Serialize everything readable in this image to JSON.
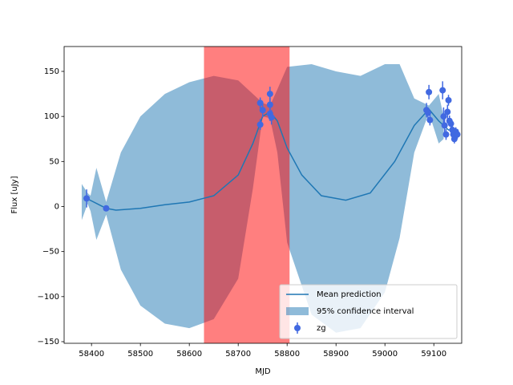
{
  "chart_data": {
    "type": "line",
    "xlabel": "MJD",
    "ylabel": "Flux [uJy]",
    "xlim": [
      58344,
      59157
    ],
    "ylim": [
      -151.8,
      177.6
    ],
    "xticks": [
      58400,
      58500,
      58600,
      58700,
      58800,
      58900,
      59000,
      59100
    ],
    "yticks": [
      {
        "value": -150,
        "label": "−150"
      },
      {
        "value": -100,
        "label": "−100"
      },
      {
        "value": -50,
        "label": "−50"
      },
      0,
      50,
      100,
      150
    ],
    "vspan": {
      "range": [
        58630,
        58805
      ],
      "color": "#ff0000",
      "opacity": 0.5
    },
    "legend": "lower right",
    "series": [
      {
        "name": "Mean prediction",
        "type": "line",
        "color": "#1f77b4",
        "x": [
          58390,
          58430,
          58450,
          58500,
          58550,
          58600,
          58650,
          58700,
          58730,
          58750,
          58765,
          58780,
          58800,
          58830,
          58870,
          58920,
          58970,
          59020,
          59060,
          59090,
          59110,
          59130,
          59150
        ],
        "values": [
          9,
          -2,
          -4,
          -2,
          2,
          5,
          12,
          35,
          70,
          100,
          105,
          95,
          65,
          35,
          12,
          7,
          15,
          50,
          90,
          108,
          95,
          85,
          85
        ]
      },
      {
        "name": "95% confidence interval",
        "type": "band",
        "color": "#1f77b4",
        "opacity": 0.5,
        "x": [
          58380,
          58392,
          58398,
          58410,
          58430,
          58460,
          58500,
          58550,
          58600,
          58650,
          58700,
          58730,
          58750,
          58765,
          58780,
          58800,
          58850,
          58900,
          58950,
          59000,
          59030,
          59060,
          59090,
          59110,
          59120
        ],
        "upper": [
          25,
          15,
          12,
          43,
          5,
          60,
          100,
          125,
          138,
          145,
          140,
          125,
          115,
          112,
          130,
          155,
          158,
          150,
          145,
          158,
          158,
          120,
          112,
          125,
          100
        ],
        "lower": [
          -15,
          3,
          -5,
          -37,
          -9,
          -70,
          -110,
          -130,
          -135,
          -125,
          -80,
          20,
          100,
          98,
          60,
          -40,
          -120,
          -140,
          -135,
          -95,
          -35,
          60,
          104,
          70,
          75
        ]
      },
      {
        "name": "zg",
        "type": "errorbar",
        "color": "#4169e1",
        "x": [
          58390,
          58430,
          58745,
          58745,
          58750,
          58765,
          58765,
          58765,
          58768,
          59085,
          59088,
          59090,
          59092,
          59118,
          59120,
          59122,
          59125,
          59128,
          59130,
          59132,
          59135,
          59138,
          59140,
          59142,
          59145,
          59148
        ],
        "values": [
          9,
          -2,
          115,
          91,
          107,
          125,
          113,
          103,
          99,
          107,
          104,
          127,
          96,
          129,
          100,
          90,
          80,
          105,
          118,
          95,
          92,
          85,
          80,
          75,
          83,
          80
        ],
        "errors": [
          10,
          3,
          6,
          6,
          8,
          8,
          8,
          8,
          8,
          8,
          6,
          8,
          6,
          10,
          10,
          8,
          6,
          8,
          6,
          6,
          6,
          6,
          5,
          5,
          5,
          5
        ]
      }
    ]
  }
}
